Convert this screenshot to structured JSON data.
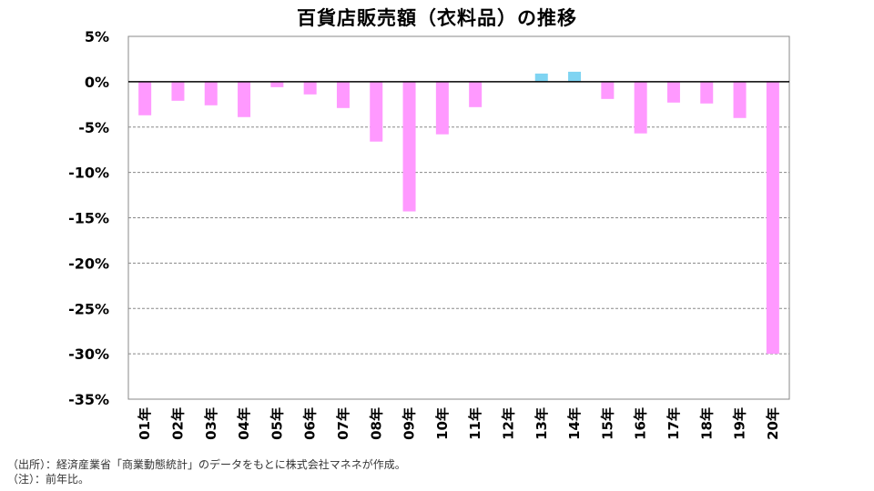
{
  "chart_data": {
    "type": "bar",
    "title": "百貨店販売額（衣料品）の推移",
    "categories": [
      "01年",
      "02年",
      "03年",
      "04年",
      "05年",
      "06年",
      "07年",
      "08年",
      "09年",
      "10年",
      "11年",
      "12年",
      "13年",
      "14年",
      "15年",
      "16年",
      "17年",
      "18年",
      "19年",
      "20年"
    ],
    "values": [
      -3.7,
      -2.1,
      -2.6,
      -3.9,
      -0.6,
      -1.4,
      -2.9,
      -6.6,
      -14.3,
      -5.8,
      -2.8,
      0.0,
      0.9,
      1.1,
      -1.9,
      -5.7,
      -2.3,
      -2.4,
      -4.0,
      -30.0
    ],
    "ylim": [
      -35,
      5
    ],
    "yticks": [
      "5%",
      "0%",
      "-5%",
      "-10%",
      "-15%",
      "-20%",
      "-25%",
      "-30%",
      "-35%"
    ],
    "grid": "horizontal-dashed",
    "colors": {
      "negative": "#ff99ff",
      "positive": "#7fd4f2",
      "grid": "#888888",
      "axis": "#000000"
    }
  },
  "notes": {
    "source": "（出所）：経済産業省「商業動態統計」のデータをもとに株式会社マネネが作成。",
    "remark": "（注）：前年比。"
  }
}
